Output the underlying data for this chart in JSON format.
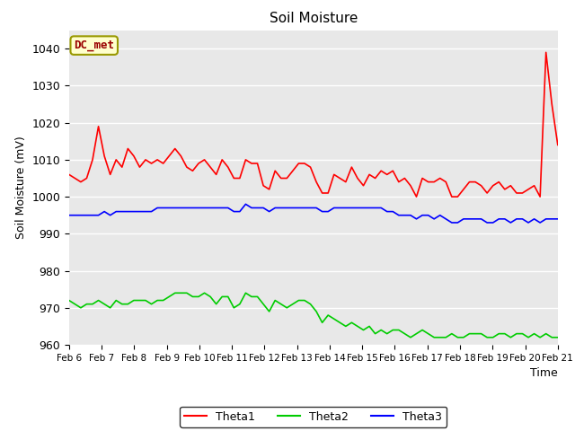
{
  "title": "Soil Moisture",
  "xlabel": "Time",
  "ylabel": "Soil Moisture (mV)",
  "ylim": [
    960,
    1045
  ],
  "yticks": [
    960,
    970,
    980,
    990,
    1000,
    1010,
    1020,
    1030,
    1040
  ],
  "xtick_labels": [
    "Feb 6",
    "Feb 7",
    "Feb 8",
    "Feb 9",
    "Feb 10",
    "Feb 11",
    "Feb 12",
    "Feb 13",
    "Feb 14",
    "Feb 15",
    "Feb 16",
    "Feb 17",
    "Feb 18",
    "Feb 19",
    "Feb 20",
    "Feb 21"
  ],
  "annotation_text": "DC_met",
  "bg_color": "#e8e8e8",
  "fig_bg": "#ffffff",
  "colors": {
    "Theta1": "#ff0000",
    "Theta2": "#00cc00",
    "Theta3": "#0000ff"
  },
  "theta1": [
    1006,
    1005,
    1004,
    1005,
    1010,
    1019,
    1011,
    1006,
    1010,
    1008,
    1013,
    1011,
    1008,
    1010,
    1009,
    1010,
    1009,
    1011,
    1013,
    1011,
    1008,
    1007,
    1009,
    1010,
    1008,
    1006,
    1010,
    1008,
    1005,
    1005,
    1010,
    1009,
    1009,
    1003,
    1002,
    1007,
    1005,
    1005,
    1007,
    1009,
    1009,
    1008,
    1004,
    1001,
    1001,
    1006,
    1005,
    1004,
    1008,
    1005,
    1003,
    1006,
    1005,
    1007,
    1006,
    1007,
    1004,
    1005,
    1003,
    1000,
    1005,
    1004,
    1004,
    1005,
    1004,
    1000,
    1000,
    1002,
    1004,
    1004,
    1003,
    1001,
    1003,
    1004,
    1002,
    1003,
    1001,
    1001,
    1002,
    1003,
    1000,
    1039,
    1025,
    1014
  ],
  "theta2": [
    972,
    971,
    970,
    971,
    971,
    972,
    971,
    970,
    972,
    971,
    971,
    972,
    972,
    972,
    971,
    972,
    972,
    973,
    974,
    974,
    974,
    973,
    973,
    974,
    973,
    971,
    973,
    973,
    970,
    971,
    974,
    973,
    973,
    971,
    969,
    972,
    971,
    970,
    971,
    972,
    972,
    971,
    969,
    966,
    968,
    967,
    966,
    965,
    966,
    965,
    964,
    965,
    963,
    964,
    963,
    964,
    964,
    963,
    962,
    963,
    964,
    963,
    962,
    962,
    962,
    963,
    962,
    962,
    963,
    963,
    963,
    962,
    962,
    963,
    963,
    962,
    963,
    963,
    962,
    963,
    962,
    963,
    962,
    962
  ],
  "theta3": [
    995,
    995,
    995,
    995,
    995,
    995,
    996,
    995,
    996,
    996,
    996,
    996,
    996,
    996,
    996,
    997,
    997,
    997,
    997,
    997,
    997,
    997,
    997,
    997,
    997,
    997,
    997,
    997,
    996,
    996,
    998,
    997,
    997,
    997,
    996,
    997,
    997,
    997,
    997,
    997,
    997,
    997,
    997,
    996,
    996,
    997,
    997,
    997,
    997,
    997,
    997,
    997,
    997,
    997,
    996,
    996,
    995,
    995,
    995,
    994,
    995,
    995,
    994,
    995,
    994,
    993,
    993,
    994,
    994,
    994,
    994,
    993,
    993,
    994,
    994,
    993,
    994,
    994,
    993,
    994,
    993,
    994,
    994,
    994
  ]
}
